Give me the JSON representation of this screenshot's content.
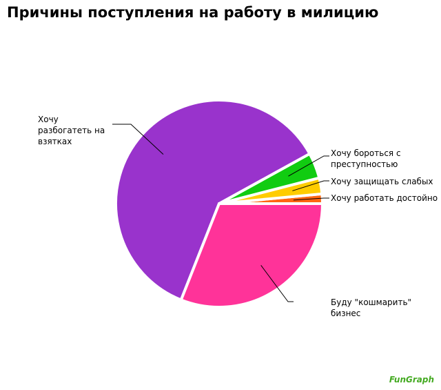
{
  "chart_data": {
    "type": "pie",
    "title": "Причины поступления на работу в милицию",
    "categories": [
      "Хочу работать достойно",
      "Хочу защищать слабых",
      "Хочу бороться с преступностью",
      "Хочу разбогатеть на взятках",
      "Буду \"кошмарить\" бизнес"
    ],
    "values": [
      1.5,
      2.5,
      4,
      61,
      31
    ],
    "colors": [
      "#ff6611",
      "#ffcc00",
      "#11cc11",
      "#9933cc",
      "#ff3399"
    ]
  },
  "watermark": "FunGraph"
}
